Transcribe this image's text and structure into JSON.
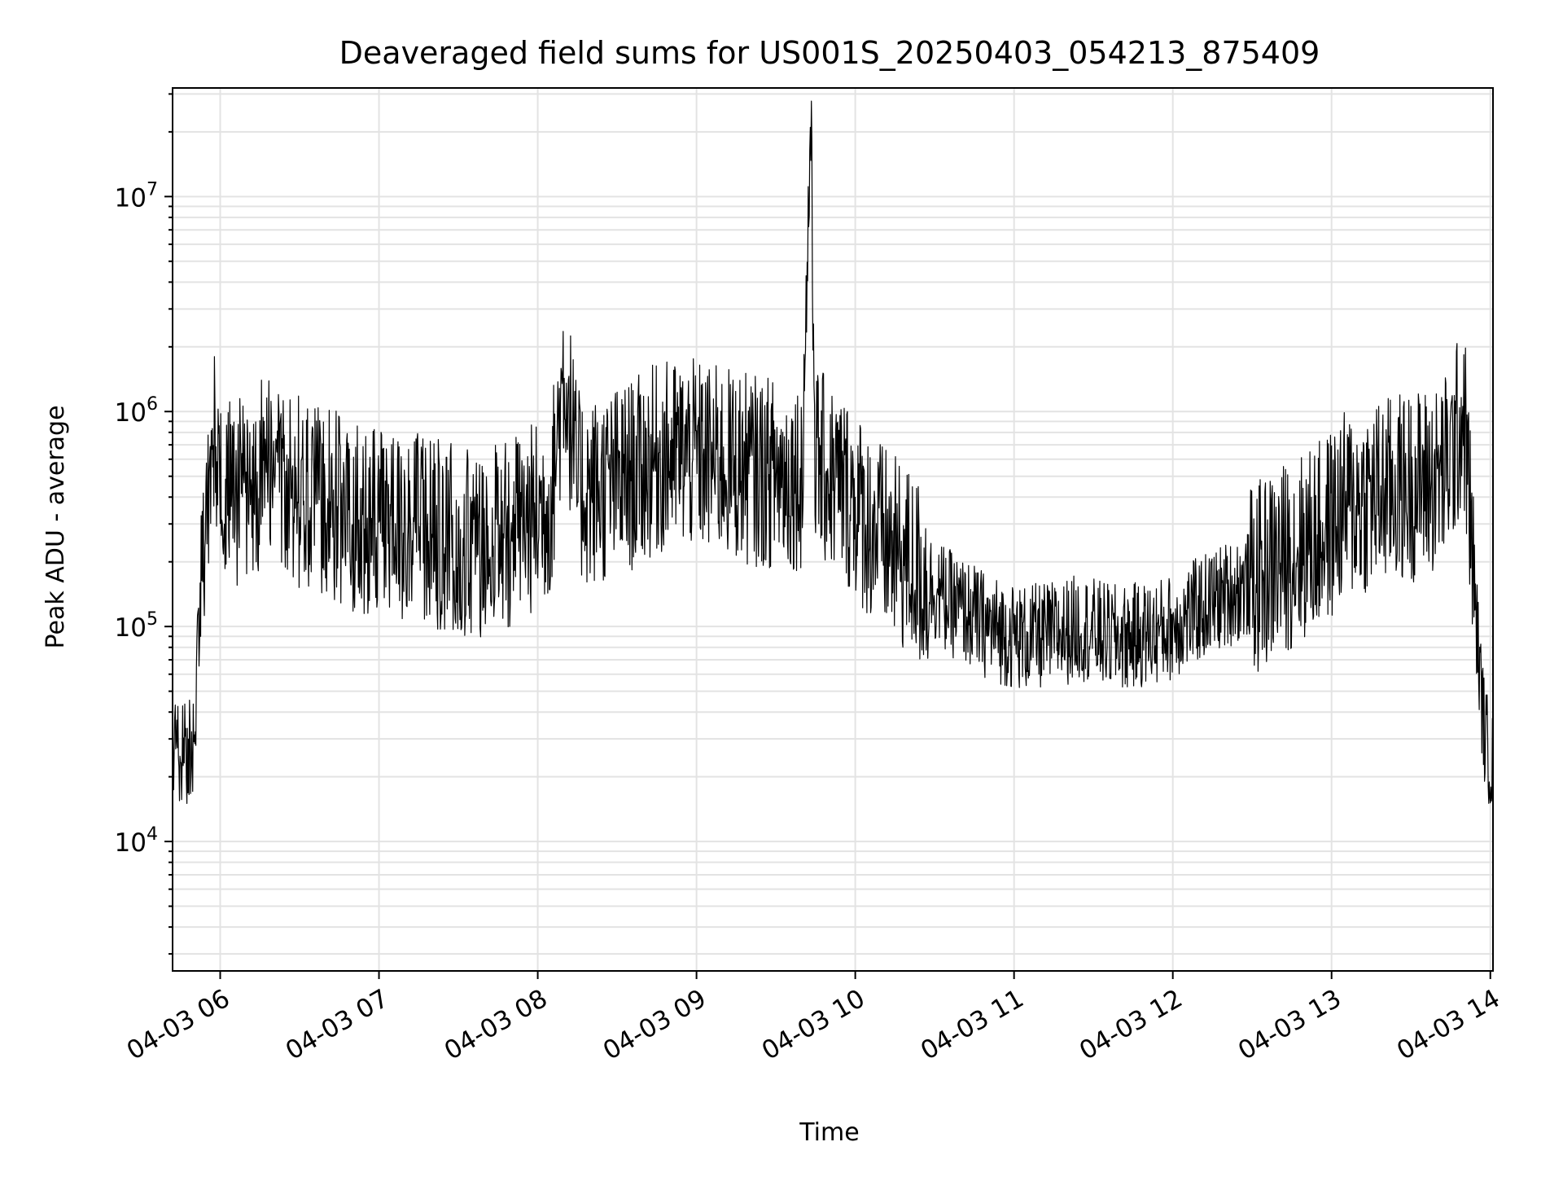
{
  "chart_data": {
    "type": "line",
    "title": "Deaveraged field sums for US001S_20250403_054213_875409",
    "xlabel": "Time",
    "ylabel": "Peak ADU - average",
    "x_range": [
      "04-03 05:42",
      "04-03 14:01"
    ],
    "x_ticks": [
      "04-03 06",
      "04-03 07",
      "04-03 08",
      "04-03 09",
      "04-03 10",
      "04-03 11",
      "04-03 12",
      "04-03 13",
      "04-03 14"
    ],
    "y_scale": "log",
    "ylim": [
      2500,
      32000000
    ],
    "y_ticks": [
      {
        "base": "10",
        "exp": "4",
        "value": 10000
      },
      {
        "base": "10",
        "exp": "5",
        "value": 100000
      },
      {
        "base": "10",
        "exp": "6",
        "value": 1000000
      },
      {
        "base": "10",
        "exp": "7",
        "value": 10000000
      }
    ],
    "grid": true,
    "line_color": "#000000",
    "series": [
      {
        "x": [
          "05:42",
          "05:45",
          "05:48",
          "05:50",
          "05:52",
          "05:53",
          "05:55",
          "05:57",
          "05:58",
          "06:00",
          "06:05",
          "06:10",
          "06:15",
          "06:20",
          "06:25",
          "06:30",
          "06:35",
          "06:40",
          "06:45",
          "06:50",
          "06:55",
          "07:00",
          "07:05",
          "07:10",
          "07:15",
          "07:20",
          "07:25",
          "07:30",
          "07:35",
          "07:40",
          "07:45",
          "07:50",
          "07:55",
          "08:00",
          "08:05",
          "08:10",
          "08:12",
          "08:15",
          "08:20",
          "08:25",
          "08:30",
          "08:35",
          "08:40",
          "08:45",
          "08:50",
          "08:55",
          "09:00",
          "09:05",
          "09:10",
          "09:15",
          "09:20",
          "09:25",
          "09:30",
          "09:35",
          "09:40",
          "09:43",
          "09:45",
          "09:50",
          "09:55",
          "10:00",
          "10:05",
          "10:10",
          "10:15",
          "10:20",
          "10:25",
          "10:30",
          "10:35",
          "10:40",
          "10:45",
          "10:50",
          "10:55",
          "11:00",
          "11:05",
          "11:10",
          "11:15",
          "11:20",
          "11:25",
          "11:30",
          "11:35",
          "11:40",
          "11:45",
          "11:50",
          "11:55",
          "12:00",
          "12:05",
          "12:10",
          "12:15",
          "12:20",
          "12:25",
          "12:30",
          "12:35",
          "12:40",
          "12:45",
          "12:50",
          "12:55",
          "13:00",
          "13:05",
          "13:10",
          "13:15",
          "13:20",
          "13:25",
          "13:30",
          "13:35",
          "13:40",
          "13:45",
          "13:50",
          "13:52",
          "13:54",
          "13:56",
          "13:58",
          "14:00",
          "14:01"
        ],
        "y": [
          30000,
          25000,
          27000,
          30000,
          100000,
          180000,
          400000,
          1000000,
          700000,
          500000,
          450000,
          400000,
          500000,
          550000,
          480000,
          420000,
          400000,
          380000,
          350000,
          330000,
          310000,
          300000,
          320000,
          300000,
          280000,
          270000,
          260000,
          250000,
          240000,
          250000,
          260000,
          280000,
          300000,
          330000,
          380000,
          1600000,
          1000000,
          450000,
          420000,
          440000,
          470000,
          500000,
          550000,
          600000,
          620000,
          640000,
          620000,
          600000,
          580000,
          560000,
          540000,
          520000,
          520000,
          500000,
          520000,
          21000000,
          600000,
          500000,
          450000,
          380000,
          300000,
          260000,
          220000,
          200000,
          170000,
          150000,
          130000,
          120000,
          110000,
          100000,
          95000,
          90000,
          88000,
          90000,
          92000,
          95000,
          100000,
          95000,
          90000,
          88000,
          90000,
          92000,
          95000,
          100000,
          110000,
          120000,
          130000,
          140000,
          150000,
          160000,
          180000,
          200000,
          220000,
          240000,
          260000,
          300000,
          360000,
          380000,
          400000,
          420000,
          440000,
          450000,
          470000,
          480000,
          600000,
          1000000,
          400000,
          150000,
          60000,
          30000,
          25000,
          22000
        ]
      }
    ]
  }
}
